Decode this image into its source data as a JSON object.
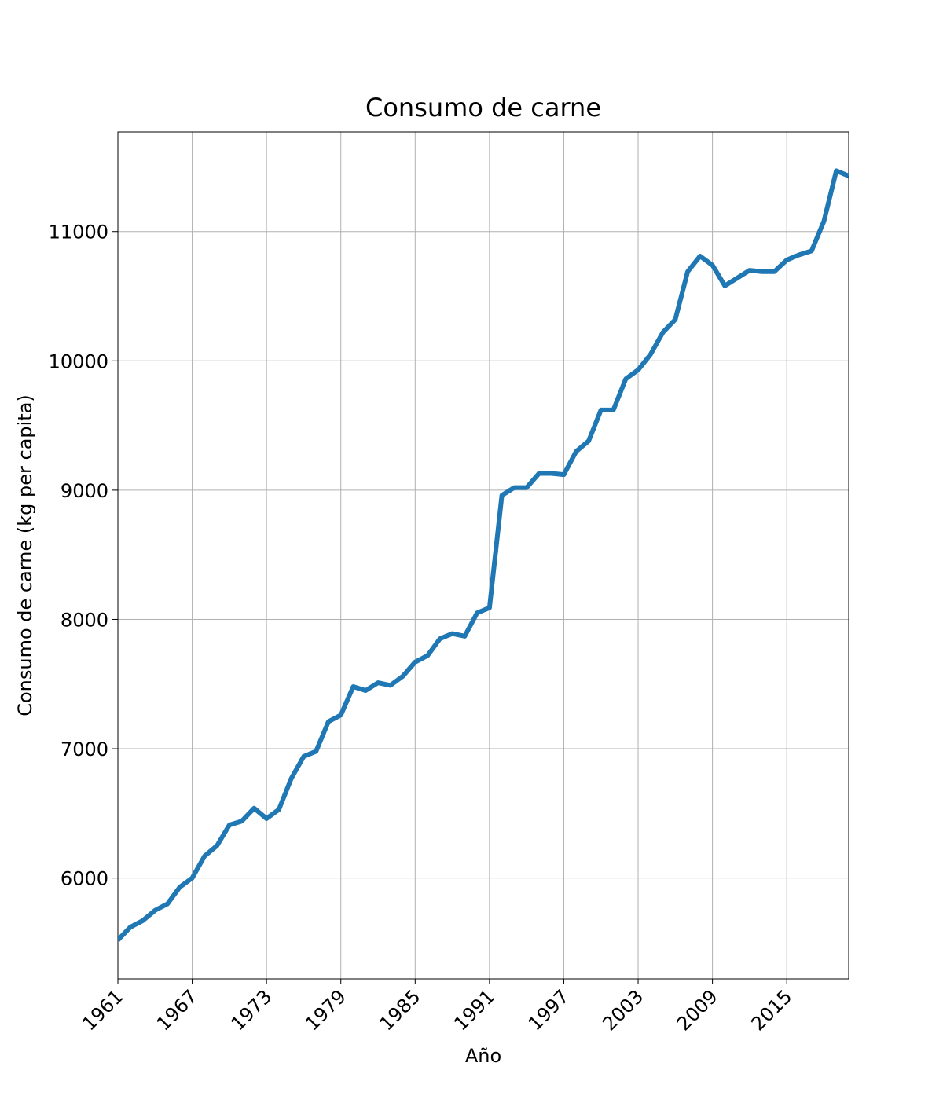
{
  "chart_data": {
    "type": "line",
    "title": "Consumo de carne",
    "x_label": "Año",
    "y_label": "Consumo de carne (kg per capita)",
    "x": [
      1961,
      1962,
      1963,
      1964,
      1965,
      1966,
      1967,
      1968,
      1969,
      1970,
      1971,
      1972,
      1973,
      1974,
      1975,
      1976,
      1977,
      1978,
      1979,
      1980,
      1981,
      1982,
      1983,
      1984,
      1985,
      1986,
      1987,
      1988,
      1989,
      1990,
      1991,
      1992,
      1993,
      1994,
      1995,
      1996,
      1997,
      1998,
      1999,
      2000,
      2001,
      2002,
      2003,
      2004,
      2005,
      2006,
      2007,
      2008,
      2009,
      2010,
      2011,
      2012,
      2013,
      2014,
      2015,
      2016,
      2017,
      2018,
      2019,
      2020
    ],
    "series": [
      {
        "name": "Consumo de carne",
        "color": "#1f77b4",
        "values": [
          5520,
          5620,
          5670,
          5750,
          5800,
          5930,
          6000,
          6170,
          6250,
          6410,
          6440,
          6540,
          6460,
          6530,
          6770,
          6940,
          6980,
          7210,
          7260,
          7480,
          7450,
          7510,
          7490,
          7560,
          7670,
          7720,
          7850,
          7890,
          7870,
          8050,
          8090,
          8960,
          9020,
          9020,
          9130,
          9130,
          9120,
          9300,
          9380,
          9620,
          9620,
          9860,
          9930,
          10050,
          10220,
          10320,
          10690,
          10810,
          10740,
          10580,
          10640,
          10700,
          10690,
          10690,
          10780,
          10820,
          10850,
          11080,
          11470,
          11430
        ]
      }
    ],
    "xlim": [
      1961,
      2020
    ],
    "xticks": [
      1961,
      1967,
      1973,
      1979,
      1985,
      1991,
      1997,
      2003,
      2009,
      2015
    ],
    "ylim": [
      5220,
      11770
    ],
    "yticks": [
      6000,
      7000,
      8000,
      9000,
      10000,
      11000
    ],
    "grid": true
  }
}
